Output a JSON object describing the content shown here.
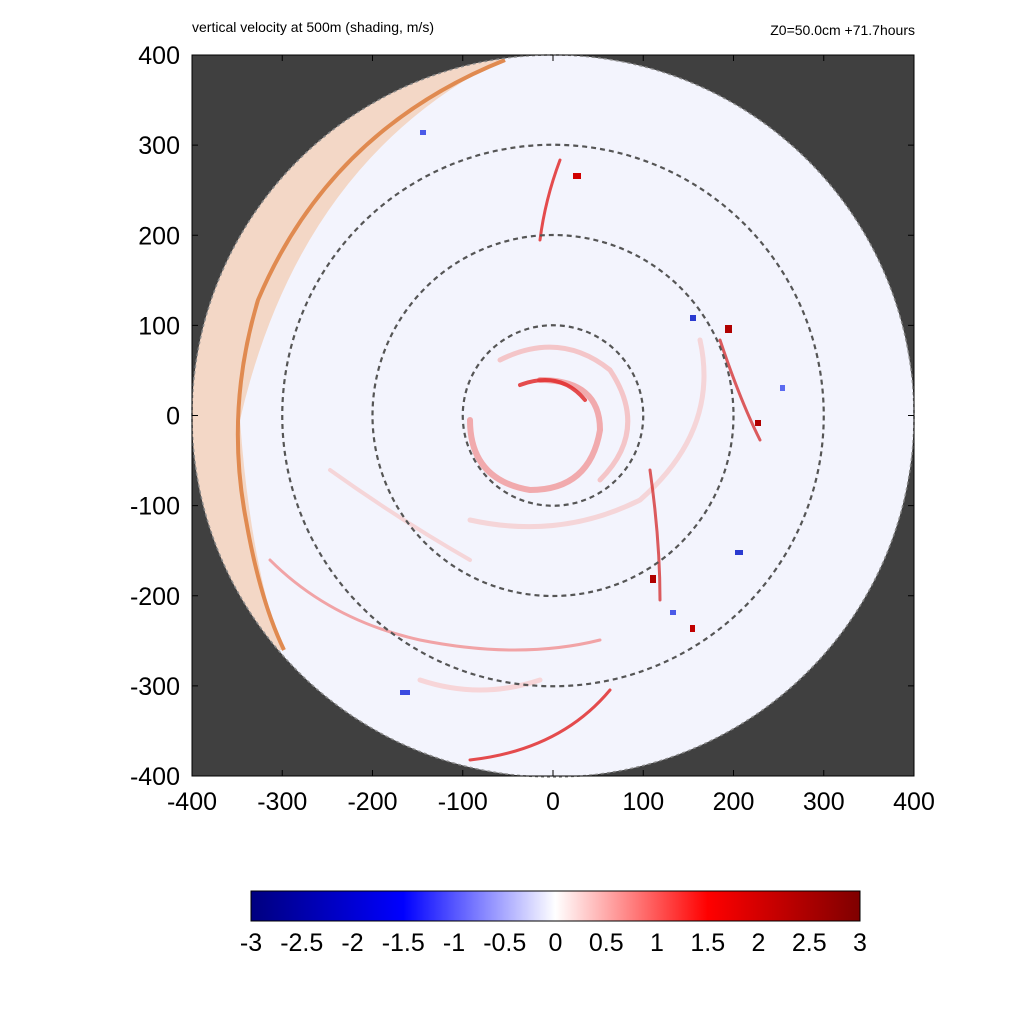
{
  "chart_data": {
    "type": "heatmap",
    "title": "vertical velocity at 500m (shading, m/s)",
    "subtitle": "Z0=50.0cm  +71.7hours",
    "xlim": [
      -400,
      400
    ],
    "ylim": [
      -400,
      400
    ],
    "x_ticks": [
      -400,
      -300,
      -200,
      -100,
      0,
      100,
      200,
      300,
      400
    ],
    "y_ticks": [
      400,
      300,
      200,
      100,
      0,
      -100,
      -200,
      -300,
      -400
    ],
    "domain_radius": 400,
    "range_rings": [
      100,
      200,
      300
    ],
    "colorbar": {
      "min": -3,
      "max": 3,
      "ticks": [
        "-3",
        "-2.5",
        "-2",
        "-1.5",
        "-1",
        "-0.5",
        "0",
        "0.5",
        "1",
        "1.5",
        "2",
        "2.5",
        "3"
      ],
      "colors": [
        "#00007f",
        "#0000ff",
        "#ffffff",
        "#ff0000",
        "#7f0000"
      ]
    },
    "background_color": "#404040",
    "grid": false
  }
}
